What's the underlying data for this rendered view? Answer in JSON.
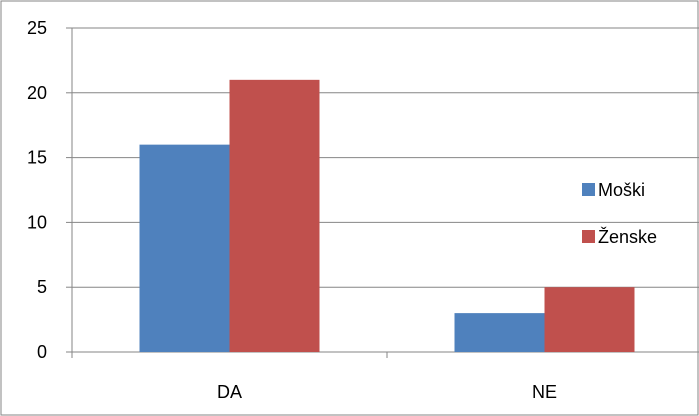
{
  "chart_data": {
    "type": "bar",
    "title": "",
    "xlabel": "",
    "ylabel": "",
    "categories": [
      "DA",
      "NE"
    ],
    "series": [
      {
        "name": "Moški",
        "values": [
          16,
          3
        ],
        "color": "#4F81BD"
      },
      {
        "name": "Ženske",
        "values": [
          21,
          5
        ],
        "color": "#C0504D"
      }
    ],
    "ylim": [
      0,
      25
    ],
    "yticks": [
      "0",
      "5",
      "10",
      "15",
      "20",
      "25"
    ],
    "grid": true,
    "legend_position": "right"
  }
}
